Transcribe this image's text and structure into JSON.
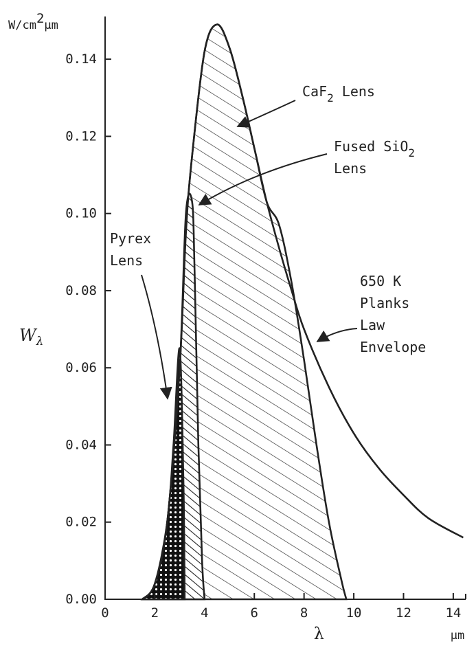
{
  "chart_data": {
    "type": "area",
    "ylabel_main": "W",
    "ylabel_sub": "λ",
    "y_unit": "W/cm",
    "y_unit_sup": "2",
    "y_unit_tail": "μm",
    "xlabel": "λ",
    "x_unit": "μm",
    "xlim": [
      0,
      14.5
    ],
    "ylim": [
      0,
      0.15
    ],
    "x_ticks": [
      "0",
      "2",
      "4",
      "6",
      "8",
      "10",
      "12",
      "14"
    ],
    "y_ticks": [
      "0.00",
      "0.02",
      "0.04",
      "0.06",
      "0.08",
      "0.10",
      "0.12",
      "0.14"
    ],
    "grid": false,
    "legend": "none",
    "series": [
      {
        "name": "650 K Planks Law Envelope",
        "fill": "none",
        "points": [
          [
            1.5,
            0.0
          ],
          [
            2.0,
            0.004
          ],
          [
            2.5,
            0.02
          ],
          [
            3.0,
            0.06
          ],
          [
            3.25,
            0.095
          ],
          [
            3.5,
            0.115
          ],
          [
            4.0,
            0.142
          ],
          [
            4.5,
            0.149
          ],
          [
            5.0,
            0.143
          ],
          [
            5.5,
            0.131
          ],
          [
            6.0,
            0.117
          ],
          [
            6.5,
            0.103
          ],
          [
            7.0,
            0.091
          ],
          [
            7.5,
            0.08
          ],
          [
            8.0,
            0.07
          ],
          [
            9.0,
            0.055
          ],
          [
            10.0,
            0.043
          ],
          [
            11.0,
            0.034
          ],
          [
            12.0,
            0.027
          ],
          [
            13.0,
            0.021
          ],
          [
            14.4,
            0.016
          ]
        ]
      },
      {
        "name": "CaF2 Lens",
        "fill": "hatch",
        "points": [
          [
            1.5,
            0.0
          ],
          [
            2.0,
            0.004
          ],
          [
            2.5,
            0.02
          ],
          [
            3.0,
            0.06
          ],
          [
            3.25,
            0.095
          ],
          [
            3.5,
            0.115
          ],
          [
            4.0,
            0.142
          ],
          [
            4.5,
            0.149
          ],
          [
            5.0,
            0.143
          ],
          [
            5.5,
            0.131
          ],
          [
            6.0,
            0.117
          ],
          [
            6.5,
            0.103
          ],
          [
            7.0,
            0.097
          ],
          [
            7.5,
            0.082
          ],
          [
            8.0,
            0.062
          ],
          [
            8.5,
            0.04
          ],
          [
            9.0,
            0.02
          ],
          [
            9.5,
            0.005
          ],
          [
            9.7,
            0.0
          ]
        ]
      },
      {
        "name": "Fused SiO2 Lens",
        "fill": "hatch",
        "points": [
          [
            1.5,
            0.0
          ],
          [
            2.0,
            0.004
          ],
          [
            2.5,
            0.02
          ],
          [
            3.0,
            0.06
          ],
          [
            3.25,
            0.1
          ],
          [
            3.5,
            0.103
          ],
          [
            3.6,
            0.085
          ],
          [
            3.75,
            0.04
          ],
          [
            3.9,
            0.01
          ],
          [
            4.0,
            0.0
          ]
        ]
      },
      {
        "name": "Pyrex Lens",
        "fill": "crosshatch",
        "points": [
          [
            1.5,
            0.0
          ],
          [
            2.0,
            0.004
          ],
          [
            2.5,
            0.02
          ],
          [
            2.75,
            0.04
          ],
          [
            3.0,
            0.065
          ],
          [
            3.15,
            0.03
          ],
          [
            3.2,
            0.0
          ]
        ]
      }
    ],
    "annotations": [
      {
        "lines": [
          "CaF",
          "Lens"
        ],
        "sub": "2",
        "point_to": [
          5.0,
          0.115
        ]
      },
      {
        "lines": [
          "Fused SiO",
          "Lens"
        ],
        "sub": "2",
        "point_to": [
          3.55,
          0.098
        ]
      },
      {
        "lines": [
          "Pyrex",
          "Lens"
        ],
        "point_to": [
          2.6,
          0.05
        ]
      },
      {
        "lines": [
          "650 K",
          "Planks",
          "Law",
          "Envelope"
        ],
        "point_to": [
          8.9,
          0.062
        ]
      }
    ]
  }
}
